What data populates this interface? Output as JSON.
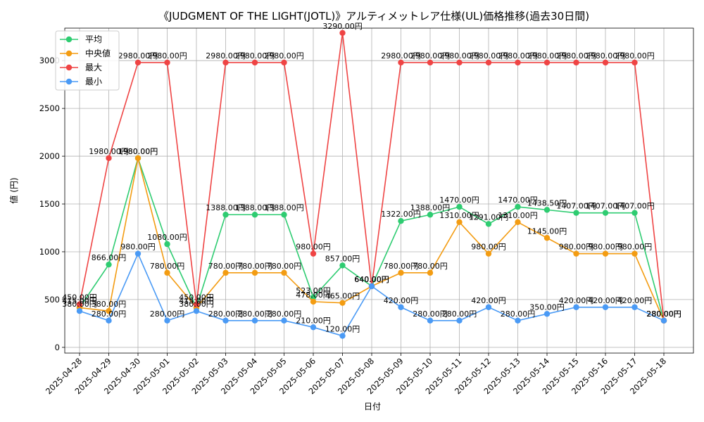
{
  "chart_data": {
    "type": "line",
    "title": "《JUDGMENT OF THE LIGHT(JOTL)》アルティメットレア仕様(UL)価格推移(過去30日間)",
    "xlabel": "日付",
    "ylabel": "値 (円)",
    "ylim": [
      -60,
      3340
    ],
    "yticks": [
      0,
      500,
      1000,
      1500,
      2000,
      2500,
      3000
    ],
    "grid": true,
    "legend_position": "top-left",
    "label_suffix": "円",
    "categories": [
      "2025-04-28",
      "2025-04-29",
      "2025-04-30",
      "2025-05-01",
      "2025-05-02",
      "2025-05-03",
      "2025-05-04",
      "2025-05-05",
      "2025-05-06",
      "2025-05-07",
      "2025-05-08",
      "2025-05-09",
      "2025-05-10",
      "2025-05-11",
      "2025-05-12",
      "2025-05-13",
      "2025-05-14",
      "2025-05-15",
      "2025-05-16",
      "2025-05-17",
      "2025-05-18"
    ],
    "series": [
      {
        "name": "平均",
        "color": "#2ecc71",
        "values": [
          415,
          866,
          1980,
          1080,
          415,
          1388,
          1388,
          1388,
          523,
          857,
          640,
          1322,
          1388,
          1470,
          1291,
          1470,
          1438.5,
          1407,
          1407,
          1407,
          280
        ]
      },
      {
        "name": "中央値",
        "color": "#f39c12",
        "values": [
          415,
          380,
          1980,
          780,
          415,
          780,
          780,
          780,
          478,
          465,
          640,
          780,
          780,
          1310,
          980,
          1310,
          1145,
          980,
          980,
          980,
          280
        ]
      },
      {
        "name": "最大",
        "color": "#ef4444",
        "values": [
          450,
          1980,
          2980,
          2980,
          450,
          2980,
          2980,
          2980,
          980,
          3290,
          640,
          2980,
          2980,
          2980,
          2980,
          2980,
          2980,
          2980,
          2980,
          2980,
          280
        ]
      },
      {
        "name": "最小",
        "color": "#4a9af5",
        "values": [
          380,
          280,
          980,
          280,
          380,
          280,
          280,
          280,
          210,
          120,
          640,
          420,
          280,
          280,
          420,
          280,
          350,
          420,
          420,
          420,
          280
        ]
      }
    ]
  }
}
